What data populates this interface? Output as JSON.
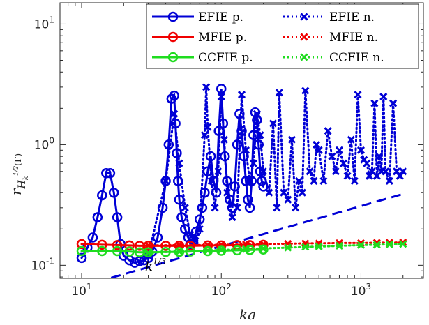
{
  "chart_data": {
    "type": "line",
    "title": "",
    "xlabel": "ka",
    "ylabel_main": "r",
    "ylabel_sub": "H",
    "ylabel_subsub": "k",
    "ylabel_sup": "1/2",
    "ylabel_tail": "(Γ)",
    "xscale": "log",
    "yscale": "log",
    "xlim": [
      7,
      2800
    ],
    "ylim": [
      0.078,
      15
    ],
    "grid": false,
    "legend_position": "top-right",
    "x_ticks": [
      {
        "value": 10,
        "base": "10",
        "exp": "1"
      },
      {
        "value": 100,
        "base": "10",
        "exp": "2"
      },
      {
        "value": 1000,
        "base": "10",
        "exp": "3"
      }
    ],
    "y_ticks": [
      {
        "value": 0.1,
        "base": "10",
        "exp": "-1"
      },
      {
        "value": 1,
        "base": "10",
        "exp": "0"
      },
      {
        "value": 10,
        "base": "10",
        "exp": "1"
      }
    ],
    "annotation": {
      "base": "k",
      "exp": "1/3",
      "x": 28,
      "y": 0.085
    },
    "reference_line": {
      "x": [
        10,
        2000
      ],
      "y": [
        0.067,
        0.39
      ]
    },
    "series": [
      {
        "name": "EFIE p.",
        "color": "#0000d6",
        "style": "solid",
        "marker": "circle",
        "x": [
          10,
          11,
          12,
          13,
          14,
          15,
          16,
          17,
          18,
          19,
          20,
          22,
          24,
          26,
          28,
          30,
          32,
          35,
          38,
          40,
          42,
          44,
          46,
          47,
          48,
          49,
          50,
          52,
          55,
          58,
          60,
          63,
          66,
          70,
          73,
          76,
          80,
          84,
          88,
          92,
          96,
          100,
          103,
          106,
          110,
          115,
          120,
          125,
          130,
          135,
          140,
          145,
          150,
          155,
          160,
          165,
          170,
          175,
          180,
          185,
          190,
          195,
          200
        ],
        "y": [
          0.115,
          0.14,
          0.17,
          0.25,
          0.38,
          0.58,
          0.58,
          0.4,
          0.25,
          0.15,
          0.12,
          0.11,
          0.105,
          0.108,
          0.11,
          0.115,
          0.13,
          0.17,
          0.3,
          0.5,
          1.0,
          2.4,
          2.55,
          1.5,
          0.85,
          0.5,
          0.35,
          0.25,
          0.2,
          0.17,
          0.15,
          0.16,
          0.19,
          0.24,
          0.3,
          0.4,
          0.6,
          0.8,
          0.5,
          0.4,
          1.3,
          2.9,
          1.5,
          0.8,
          0.5,
          0.35,
          0.3,
          0.45,
          1.0,
          1.8,
          1.3,
          0.8,
          0.5,
          0.35,
          0.3,
          0.5,
          1.2,
          1.85,
          1.6,
          1.0,
          0.6,
          0.5,
          0.45
        ]
      },
      {
        "name": "MFIE p.",
        "color": "#f00000",
        "style": "solid",
        "marker": "circle",
        "x": [
          10,
          14,
          18,
          22,
          26,
          30,
          40,
          50,
          60,
          80,
          100,
          130,
          160,
          200
        ],
        "y": [
          0.15,
          0.148,
          0.147,
          0.146,
          0.145,
          0.145,
          0.145,
          0.145,
          0.145,
          0.146,
          0.146,
          0.147,
          0.147,
          0.148
        ]
      },
      {
        "name": "CCFIE p.",
        "color": "#1fdc1f",
        "style": "solid",
        "marker": "circle",
        "x": [
          10,
          14,
          18,
          22,
          26,
          30,
          40,
          50,
          60,
          80,
          100,
          130,
          160,
          200
        ],
        "y": [
          0.131,
          0.131,
          0.131,
          0.13,
          0.128,
          0.128,
          0.129,
          0.129,
          0.13,
          0.131,
          0.132,
          0.133,
          0.134,
          0.135
        ]
      },
      {
        "name": "EFIE n.",
        "color": "#0000d6",
        "style": "dotted",
        "marker": "x",
        "x": [
          30,
          40,
          46,
          50,
          55,
          60,
          65,
          70,
          76,
          78,
          80,
          85,
          90,
          95,
          100,
          105,
          110,
          120,
          130,
          140,
          150,
          160,
          170,
          180,
          190,
          200,
          220,
          235,
          250,
          260,
          280,
          300,
          320,
          340,
          360,
          380,
          400,
          430,
          460,
          480,
          500,
          540,
          580,
          620,
          660,
          700,
          750,
          800,
          850,
          900,
          950,
          1000,
          1050,
          1100,
          1150,
          1200,
          1250,
          1300,
          1350,
          1400,
          1450,
          1500,
          1600,
          1700,
          1800,
          1900,
          2000
        ],
        "y": [
          0.12,
          0.5,
          1.8,
          0.7,
          0.3,
          0.18,
          0.16,
          0.2,
          1.2,
          3.0,
          1.4,
          0.5,
          0.3,
          0.6,
          2.5,
          1.1,
          0.4,
          0.25,
          0.3,
          2.6,
          0.9,
          0.5,
          0.7,
          1.8,
          1.2,
          0.6,
          0.4,
          1.5,
          0.3,
          2.7,
          0.4,
          0.35,
          1.1,
          0.3,
          0.5,
          0.4,
          2.8,
          0.6,
          0.5,
          1.0,
          0.9,
          0.5,
          1.3,
          0.8,
          0.6,
          0.9,
          0.7,
          0.55,
          1.1,
          0.5,
          2.6,
          0.9,
          0.75,
          0.7,
          0.55,
          0.6,
          2.2,
          0.55,
          0.8,
          0.6,
          2.5,
          0.6,
          0.5,
          2.2,
          0.6,
          0.55,
          0.6
        ]
      },
      {
        "name": "MFIE n.",
        "color": "#f00000",
        "style": "dotted",
        "marker": "x",
        "x": [
          30,
          50,
          80,
          100,
          150,
          200,
          300,
          400,
          500,
          700,
          1000,
          1300,
          1600,
          2000
        ],
        "y": [
          0.146,
          0.147,
          0.147,
          0.148,
          0.149,
          0.15,
          0.151,
          0.152,
          0.152,
          0.153,
          0.153,
          0.154,
          0.154,
          0.155
        ]
      },
      {
        "name": "CCFIE n.",
        "color": "#1fdc1f",
        "style": "dotted",
        "marker": "x",
        "x": [
          30,
          50,
          80,
          100,
          150,
          200,
          300,
          400,
          500,
          700,
          1000,
          1300,
          1600,
          2000
        ],
        "y": [
          0.127,
          0.13,
          0.132,
          0.134,
          0.136,
          0.138,
          0.14,
          0.142,
          0.143,
          0.145,
          0.147,
          0.148,
          0.149,
          0.15
        ]
      }
    ]
  }
}
